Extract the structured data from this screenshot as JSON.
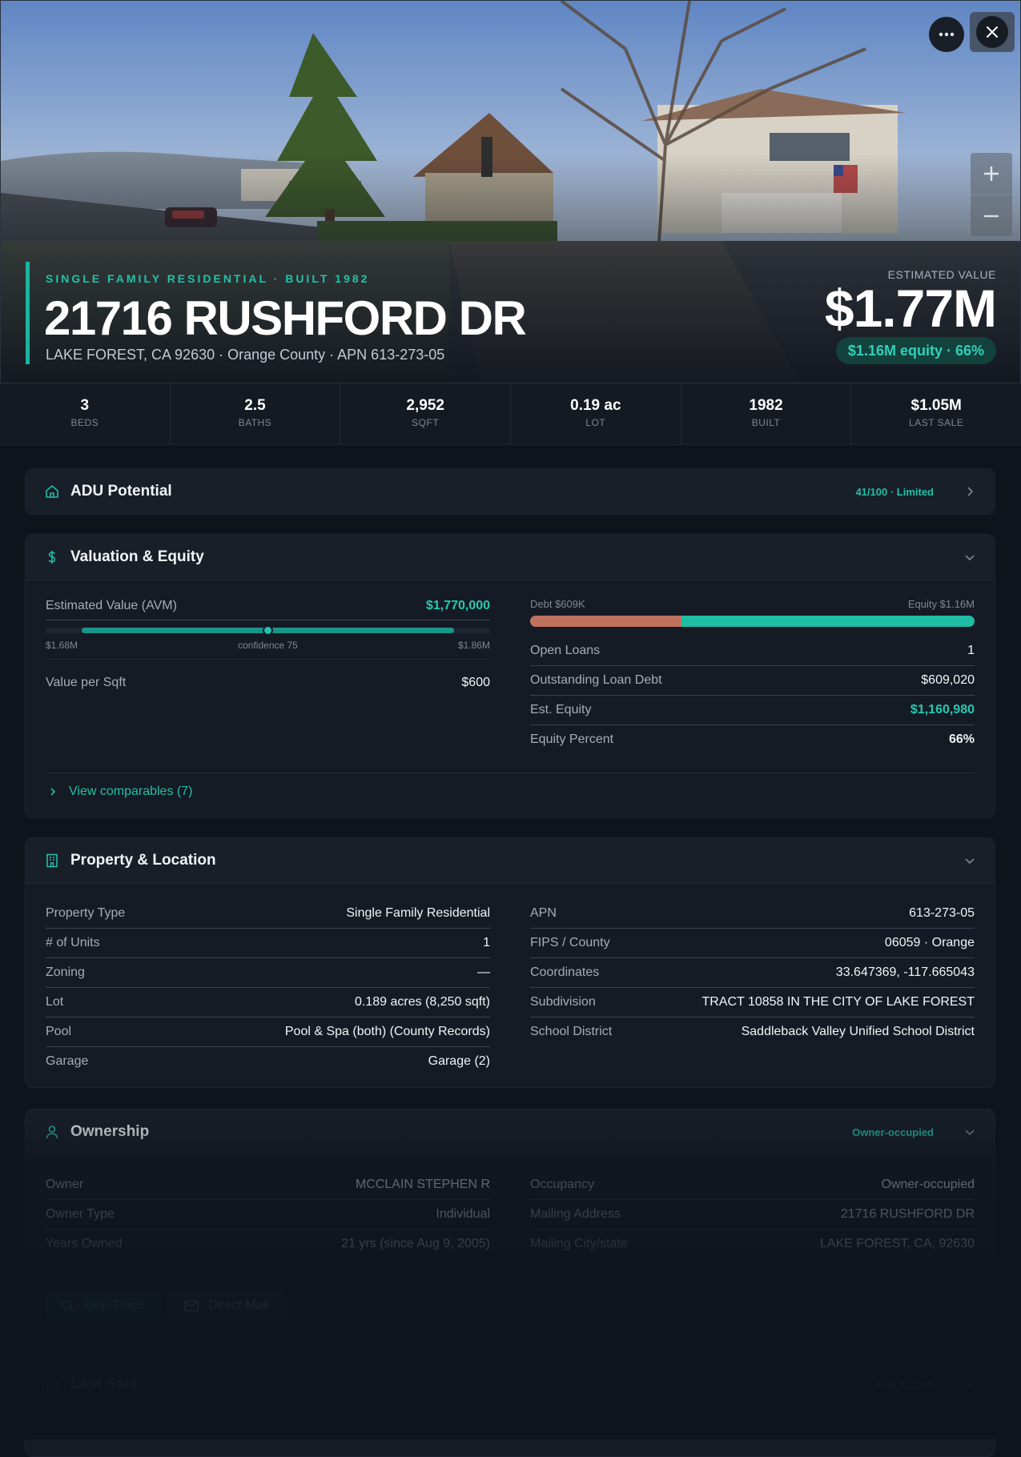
{
  "hero": {
    "subtitle": "SINGLE FAMILY RESIDENTIAL · BUILT 1982",
    "title": "21716 RUSHFORD DR",
    "address": "LAKE FOREST, CA 92630 · Orange County · APN 613-273-05",
    "estimated_label": "ESTIMATED VALUE",
    "estimated_value": "$1.77M",
    "equity_badge": "$1.16M equity · 66%",
    "more_icon": "more-dots-icon",
    "close_icon": "close-icon",
    "zoom_in_icon": "plus-icon",
    "zoom_out_icon": "minus-icon"
  },
  "stats": [
    {
      "value": "3",
      "label": "BEDS"
    },
    {
      "value": "2.5",
      "label": "BATHS"
    },
    {
      "value": "2,952",
      "label": "SQFT"
    },
    {
      "value": "0.19 ac",
      "label": "LOT"
    },
    {
      "value": "1982",
      "label": "BUILT"
    },
    {
      "value": "$1.05M",
      "label": "LAST SALE"
    }
  ],
  "adu": {
    "title": "ADU Potential",
    "badge": "41/100 · Limited",
    "icon": "home-icon"
  },
  "valuation": {
    "title": "Valuation & Equity",
    "icon": "dollar-icon",
    "avm_label": "Estimated Value (AVM)",
    "avm_value": "$1,770,000",
    "range_low": "$1.68M",
    "range_high": "$1.86M",
    "confidence": "confidence 75",
    "value_per_sqft_label": "Value per Sqft",
    "value_per_sqft": "$600",
    "debt_label": "Debt $609K",
    "equity_label": "Equity $1.16M",
    "debt_fraction": 0.34,
    "rows": [
      {
        "k": "Open Loans",
        "v": "1"
      },
      {
        "k": "Outstanding Loan Debt",
        "v": "$609,020"
      },
      {
        "k": "Est. Equity",
        "v": "$1,160,980"
      },
      {
        "k": "Equity Percent",
        "v": "66%"
      }
    ],
    "comparables": "View comparables (7)"
  },
  "property": {
    "title": "Property & Location",
    "icon": "building-icon",
    "left": [
      {
        "k": "Property Type",
        "v": "Single Family Residential"
      },
      {
        "k": "# of Units",
        "v": "1"
      },
      {
        "k": "Zoning",
        "v": "—"
      },
      {
        "k": "Lot",
        "v": "0.189 acres (8,250 sqft)"
      },
      {
        "k": "Pool",
        "v": "Pool & Spa (both) (County Records)"
      },
      {
        "k": "Garage",
        "v": "Garage (2)"
      }
    ],
    "right": [
      {
        "k": "APN",
        "v": "613-273-05"
      },
      {
        "k": "FIPS / County",
        "v": "06059 · Orange"
      },
      {
        "k": "Coordinates",
        "v": "33.647369, -117.665043"
      },
      {
        "k": "Subdivision",
        "v": "TRACT 10858 IN THE CITY OF LAKE FOREST"
      },
      {
        "k": "School District",
        "v": "Saddleback Valley Unified School District"
      }
    ]
  },
  "ownership": {
    "title": "Ownership",
    "icon": "person-icon",
    "badge": "Owner-occupied",
    "left": [
      {
        "k": "Owner",
        "v": "MCCLAIN STEPHEN R"
      },
      {
        "k": "Owner Type",
        "v": "Individual"
      },
      {
        "k": "Years Owned",
        "v": "21 yrs (since Aug 9, 2005)"
      }
    ],
    "right": [
      {
        "k": "Occupancy",
        "v": "Owner-occupied"
      },
      {
        "k": "Mailing Address",
        "v": "21716 RUSHFORD DR"
      },
      {
        "k": "Mailing City/state",
        "v": "LAKE FOREST, CA, 92630"
      }
    ],
    "skip_trace": "Skip Trace",
    "direct_mail": "Direct Mail"
  },
  "last_sale": {
    "title": "Last Sale",
    "date": "Aug 9, 2005",
    "icon": "receipt-icon"
  },
  "colors": {
    "accent": "#19b6a0",
    "debt": "#c0725f",
    "background": "#0f141c"
  }
}
